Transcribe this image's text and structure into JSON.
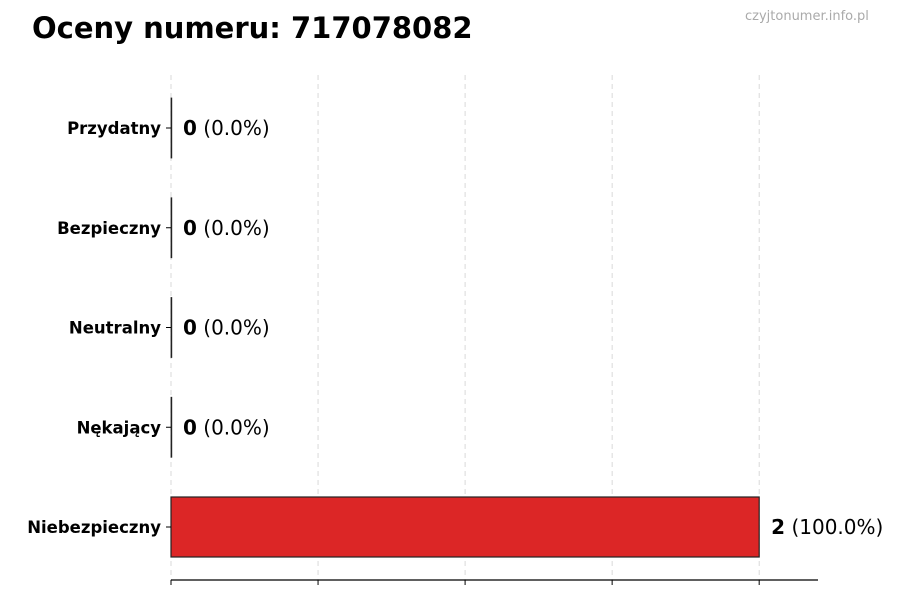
{
  "chart_data": {
    "type": "bar",
    "orientation": "horizontal",
    "title": "Oceny numeru: 717078082",
    "watermark": "czyjtonumer.info.pl",
    "categories": [
      "Przydatny",
      "Bezpieczny",
      "Neutralny",
      "Nękający",
      "Niebezpieczny"
    ],
    "values": [
      0,
      0,
      0,
      0,
      2
    ],
    "labels": [
      {
        "count": "0",
        "pct": "(0.0%)"
      },
      {
        "count": "0",
        "pct": "(0.0%)"
      },
      {
        "count": "0",
        "pct": "(0.0%)"
      },
      {
        "count": "0",
        "pct": "(0.0%)"
      },
      {
        "count": "2",
        "pct": "(100.0%)"
      }
    ],
    "colors": [
      "#2e7d32",
      "#4caf50",
      "#9e9e9e",
      "#ff9800",
      "#dc2626"
    ],
    "xlim": [
      0,
      2.2
    ],
    "xticks": [
      0,
      0.5,
      1,
      1.5,
      2
    ],
    "grid": "x dashed",
    "xlabel": "",
    "ylabel": ""
  }
}
